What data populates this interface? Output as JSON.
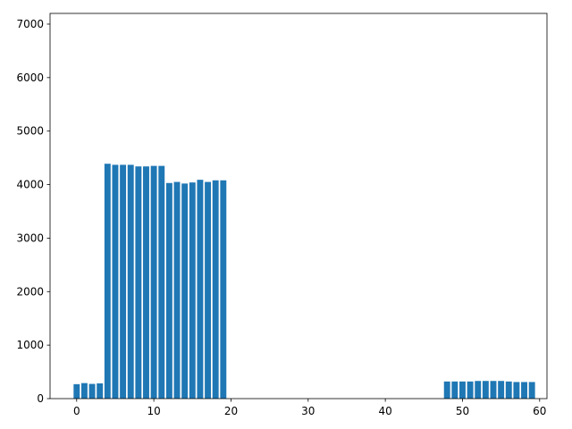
{
  "chart_data": {
    "type": "bar",
    "color": "#1f77b4",
    "bar_width": 0.8,
    "x": [
      0,
      1,
      2,
      3,
      4,
      5,
      6,
      7,
      8,
      9,
      10,
      11,
      12,
      13,
      14,
      15,
      16,
      17,
      18,
      19,
      48,
      49,
      50,
      51,
      52,
      53,
      54,
      55,
      56,
      57,
      58,
      59
    ],
    "values": [
      270,
      290,
      275,
      285,
      4390,
      4370,
      4370,
      4370,
      4340,
      4340,
      4350,
      4350,
      4030,
      4050,
      4020,
      4040,
      4090,
      4050,
      4080,
      4080,
      320,
      320,
      320,
      320,
      330,
      330,
      330,
      330,
      320,
      310,
      310,
      310
    ],
    "xlim": [
      -3.45,
      60.95
    ],
    "xticks": [
      0,
      10,
      20,
      30,
      40,
      50,
      60
    ],
    "ylim": [
      0,
      7200
    ],
    "yticks": [
      0,
      1000,
      2000,
      3000,
      4000,
      5000,
      6000,
      7000
    ],
    "grid": false
  }
}
